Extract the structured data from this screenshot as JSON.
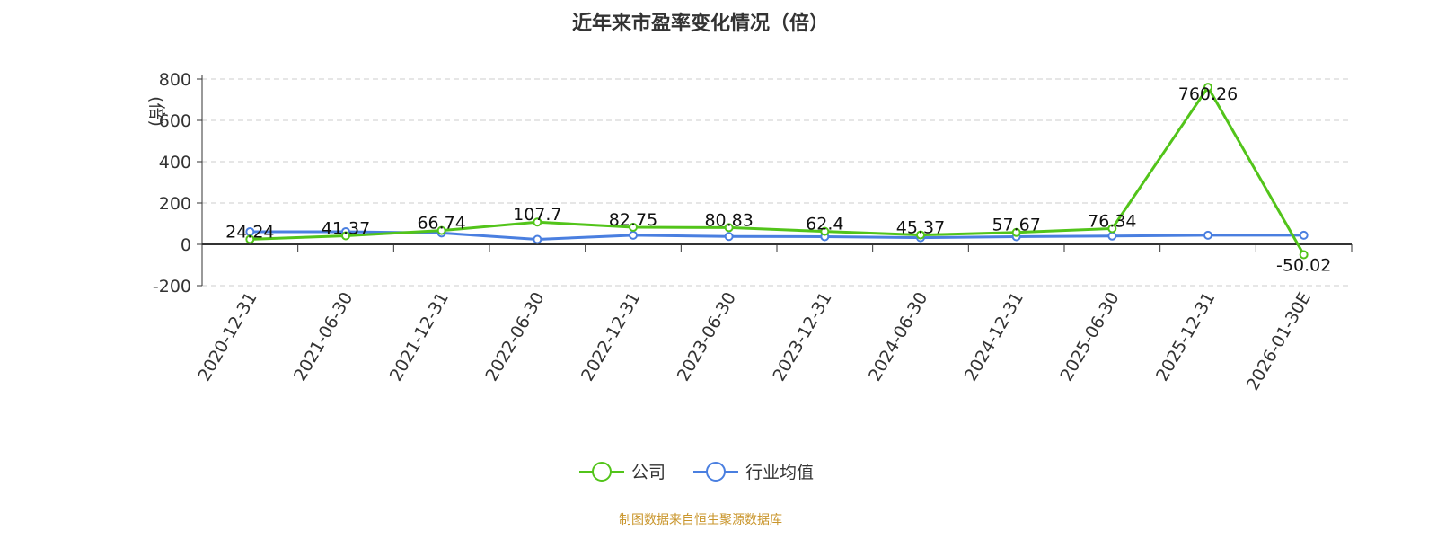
{
  "chart_data": {
    "type": "line",
    "title": "近年来市盈率变化情况（倍）",
    "ylabel": "(倍)",
    "ylim": [
      -200,
      800
    ],
    "yticks": [
      800,
      600,
      400,
      200,
      0,
      -200
    ],
    "grid": true,
    "legend_position": "bottom",
    "categories": [
      "2020-12-31",
      "2021-06-30",
      "2021-12-31",
      "2022-06-30",
      "2022-12-31",
      "2023-06-30",
      "2023-12-31",
      "2024-06-30",
      "2024-12-31",
      "2025-06-30",
      "2025-12-31",
      "2026-01-30E"
    ],
    "series": [
      {
        "name": "公司",
        "color": "#52c41a",
        "values": [
          24.24,
          41.37,
          66.74,
          107.7,
          82.75,
          80.83,
          62.4,
          45.37,
          57.67,
          76.34,
          760.26,
          -50.02
        ],
        "labels": [
          "24.24",
          "41.37",
          "66.74",
          "107.7",
          "82.75",
          "80.83",
          "62.4",
          "45.37",
          "57.67",
          "76.34",
          "760.26",
          "-50.02"
        ]
      },
      {
        "name": "行业均值",
        "color": "#4a7fe0",
        "values": [
          61,
          61,
          55,
          24,
          44,
          38,
          37,
          32,
          37,
          40,
          44,
          44
        ]
      }
    ]
  },
  "source": "制图数据来自恒生聚源数据库"
}
